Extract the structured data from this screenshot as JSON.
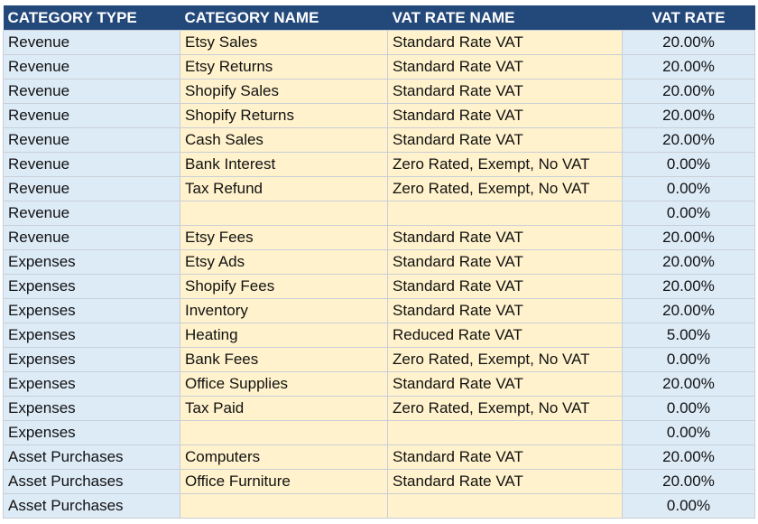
{
  "headers": {
    "category_type": "CATEGORY TYPE",
    "category_name": "CATEGORY NAME",
    "vat_rate_name": "VAT RATE NAME",
    "vat_rate": "VAT RATE"
  },
  "rows": [
    {
      "type": "Revenue",
      "name": "Etsy Sales",
      "vat_name": "Standard Rate VAT",
      "rate": "20.00%"
    },
    {
      "type": "Revenue",
      "name": "Etsy Returns",
      "vat_name": "Standard Rate VAT",
      "rate": "20.00%"
    },
    {
      "type": "Revenue",
      "name": "Shopify Sales",
      "vat_name": "Standard Rate VAT",
      "rate": "20.00%"
    },
    {
      "type": "Revenue",
      "name": "Shopify Returns",
      "vat_name": "Standard Rate VAT",
      "rate": "20.00%"
    },
    {
      "type": "Revenue",
      "name": "Cash Sales",
      "vat_name": "Standard Rate VAT",
      "rate": "20.00%"
    },
    {
      "type": "Revenue",
      "name": "Bank Interest",
      "vat_name": "Zero Rated, Exempt, No VAT",
      "rate": "0.00%"
    },
    {
      "type": "Revenue",
      "name": "Tax Refund",
      "vat_name": "Zero Rated, Exempt, No VAT",
      "rate": "0.00%"
    },
    {
      "type": "Revenue",
      "name": "",
      "vat_name": "",
      "rate": "0.00%"
    },
    {
      "type": "Revenue",
      "name": "Etsy Fees",
      "vat_name": "Standard Rate VAT",
      "rate": "20.00%"
    },
    {
      "type": "Expenses",
      "name": "Etsy Ads",
      "vat_name": "Standard Rate VAT",
      "rate": "20.00%"
    },
    {
      "type": "Expenses",
      "name": "Shopify Fees",
      "vat_name": "Standard Rate VAT",
      "rate": "20.00%"
    },
    {
      "type": "Expenses",
      "name": "Inventory",
      "vat_name": "Standard Rate VAT",
      "rate": "20.00%"
    },
    {
      "type": "Expenses",
      "name": "Heating",
      "vat_name": "Reduced Rate VAT",
      "rate": "5.00%"
    },
    {
      "type": "Expenses",
      "name": "Bank Fees",
      "vat_name": "Zero Rated, Exempt, No VAT",
      "rate": "0.00%"
    },
    {
      "type": "Expenses",
      "name": "Office Supplies",
      "vat_name": "Standard Rate VAT",
      "rate": "20.00%"
    },
    {
      "type": "Expenses",
      "name": "Tax Paid",
      "vat_name": "Zero Rated, Exempt, No VAT",
      "rate": "0.00%"
    },
    {
      "type": "Expenses",
      "name": "",
      "vat_name": "",
      "rate": "0.00%"
    },
    {
      "type": "Asset Purchases",
      "name": "Computers",
      "vat_name": "Standard Rate VAT",
      "rate": "20.00%"
    },
    {
      "type": "Asset Purchases",
      "name": "Office Furniture",
      "vat_name": "Standard Rate VAT",
      "rate": "20.00%"
    },
    {
      "type": "Asset Purchases",
      "name": "",
      "vat_name": "",
      "rate": "0.00%"
    }
  ],
  "colors": {
    "header_bg": "#23487a",
    "header_text": "#ffffff",
    "blue_cell": "#ddebf7",
    "yellow_cell": "#fff2cc",
    "grid_line": "#c9cfd6"
  }
}
